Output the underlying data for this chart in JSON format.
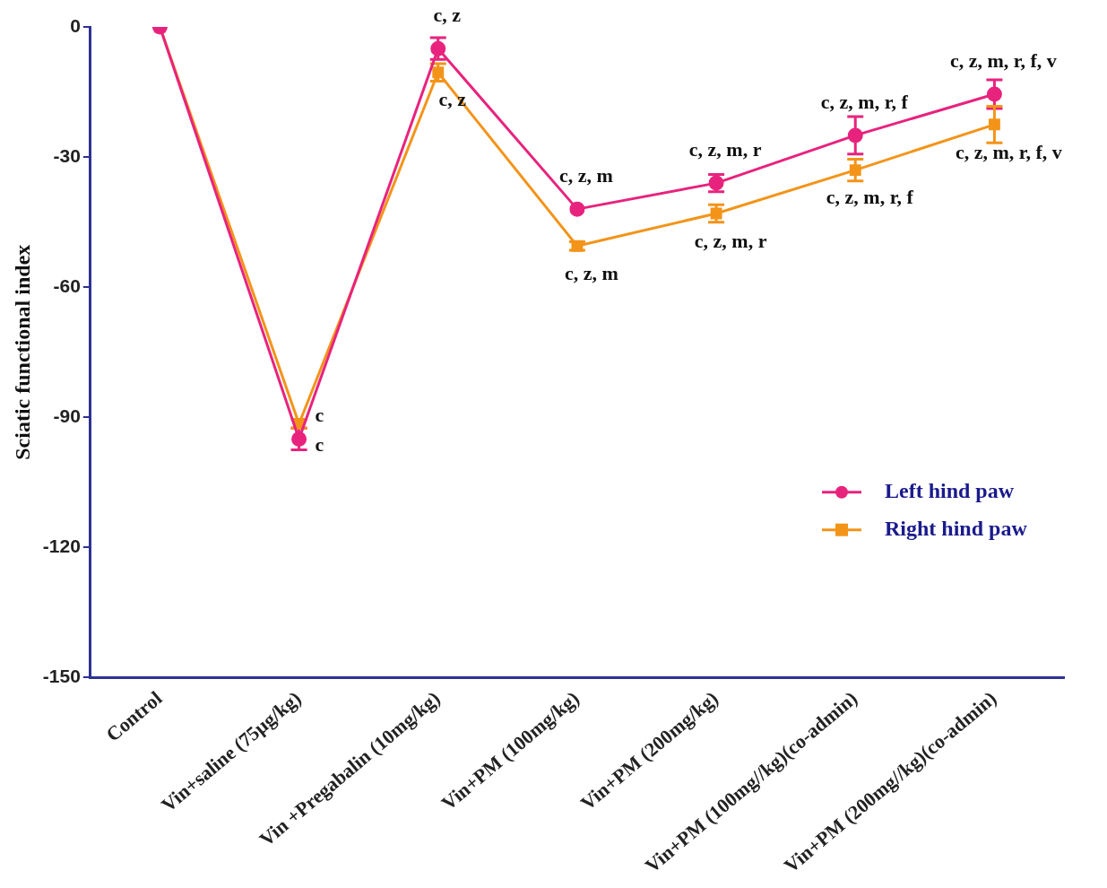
{
  "chart_data": {
    "type": "line",
    "ylabel": "Sciatic functional index",
    "categories": [
      "Control",
      "Vin+saline (75µg/kg)",
      "Vin +Pregabalin (10mg/kg)",
      "Vin+PM (100mg/kg)",
      "Vin+PM (200mg/kg)",
      "Vin+PM (100mg//kg)(co-admin)",
      "Vin+PM (200mg//kg)(co-admin)"
    ],
    "series": [
      {
        "name": "Left hind paw",
        "color": "#e8237d",
        "marker": "circle",
        "values": [
          0,
          -95,
          -5,
          -42,
          -36,
          -25,
          -15.5
        ],
        "errors": [
          null,
          2.5,
          2.5,
          null,
          2,
          4.3,
          3.3
        ]
      },
      {
        "name": "Right hind paw",
        "color": "#f39419",
        "marker": "square",
        "values": [
          0,
          -91.5,
          -10.5,
          -50.5,
          -43,
          -33,
          -22.5
        ],
        "errors": [
          null,
          1,
          2,
          1,
          2,
          2.5,
          4.2
        ]
      }
    ],
    "ylim": [
      -150,
      0
    ],
    "yticks": [
      -150,
      -120,
      -90,
      -60,
      -30,
      0
    ],
    "grid": false,
    "legend": "right",
    "line_style": "solid",
    "annotations": [
      {
        "text": "c",
        "x": "Vin+saline (75µg/kg)",
        "y": -91.5
      },
      {
        "text": "c",
        "x": "Vin+saline (75µg/kg)",
        "y": -95
      },
      {
        "text": "c, z",
        "x": "Vin +Pregabalin (10mg/kg)",
        "y": -5
      },
      {
        "text": "c, z",
        "x": "Vin +Pregabalin (10mg/kg)",
        "y": -10.5
      },
      {
        "text": "c, z, m",
        "x": "Vin+PM (100mg/kg)",
        "y": -42
      },
      {
        "text": "c, z, m",
        "x": "Vin+PM (100mg/kg)",
        "y": -50.5
      },
      {
        "text": "c, z, m, r",
        "x": "Vin+PM (200mg/kg)",
        "y": -36
      },
      {
        "text": "c, z, m, r",
        "x": "Vin+PM (200mg/kg)",
        "y": -43
      },
      {
        "text": "c, z, m, r, f",
        "x": "Vin+PM (100mg//kg)(co-admin)",
        "y": -25
      },
      {
        "text": "c, z, m, r, f",
        "x": "Vin+PM (100mg//kg)(co-admin)",
        "y": -33
      },
      {
        "text": "c, z, m, r, f, v",
        "x": "Vin+PM (200mg//kg)(co-admin)",
        "y": -15.5
      },
      {
        "text": "c, z, m, r, f, v",
        "x": "Vin+PM (200mg//kg)(co-admin)",
        "y": -22.5
      }
    ]
  }
}
